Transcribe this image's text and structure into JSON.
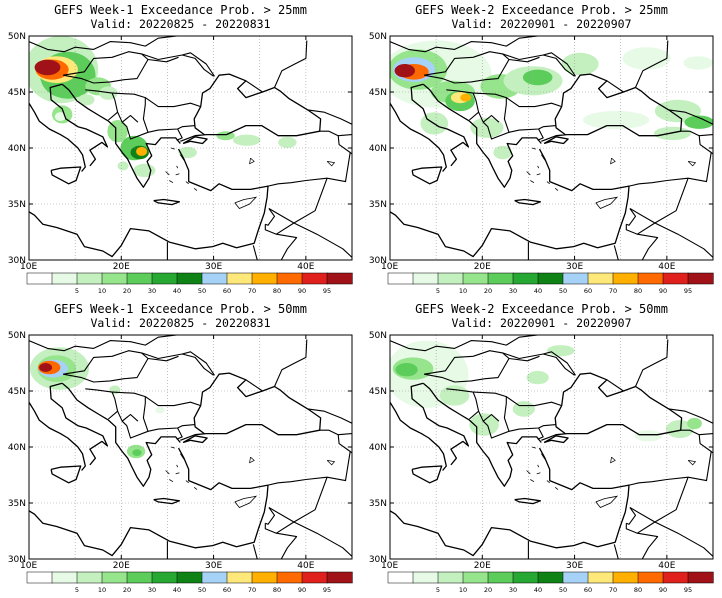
{
  "panels": [
    {
      "title": "GEFS Week-1 Exceedance Prob. > 25mm",
      "valid": "Valid: 20220825 - 20220831"
    },
    {
      "title": "GEFS Week-2 Exceedance Prob. > 25mm",
      "valid": "Valid: 20220901 - 20220907"
    },
    {
      "title": "GEFS Week-1 Exceedance Prob. > 50mm",
      "valid": "Valid: 20220825 - 20220831"
    },
    {
      "title": "GEFS Week-2 Exceedance Prob. > 50mm",
      "valid": "Valid: 20220901 - 20220907"
    }
  ],
  "chart_data": {
    "type": "heatmap",
    "map_extent": {
      "lon": [
        10,
        45
      ],
      "lat": [
        30,
        50
      ]
    },
    "lon_ticks": [
      "10E",
      "20E",
      "30E",
      "40E"
    ],
    "lat_ticks": [
      "30N",
      "35N",
      "40N",
      "45N",
      "50N"
    ],
    "grid": "dotted",
    "colorbar": {
      "labels": [
        "5",
        "10",
        "20",
        "30",
        "40",
        "50",
        "60",
        "70",
        "80",
        "90",
        "95"
      ],
      "colors": [
        "#ffffff",
        "#e6fae6",
        "#c4f0c0",
        "#96e48c",
        "#5ccc5a",
        "#26a832",
        "#0f8216",
        "#a7d2f7",
        "#ffe87a",
        "#ffb000",
        "#ff6a00",
        "#e0201c",
        "#a01218"
      ]
    }
  }
}
